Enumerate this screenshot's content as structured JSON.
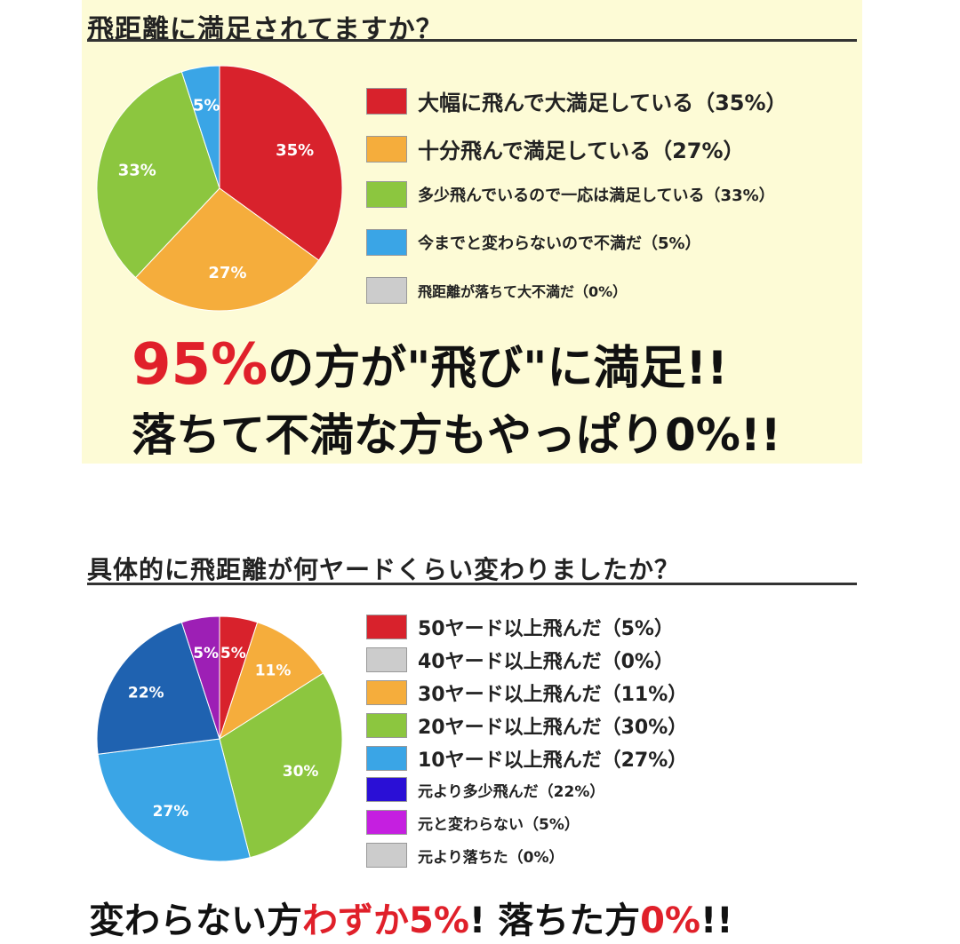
{
  "colors": {
    "red": "#d8222c",
    "orange": "#f5ad3c",
    "green": "#8cc63f",
    "blue": "#3aa5e6",
    "gray": "#cccccc",
    "navy": "#1f62b0",
    "violet": "#9d1fb5",
    "accent": "#e0202a",
    "panel": "#fdfbd6"
  },
  "chart_data": [
    {
      "type": "pie",
      "title": "飛距離に満足されてますか？",
      "slices": [
        {
          "label": "大幅に飛んで大満足している（35%）",
          "value": 35,
          "pie_label": "35%",
          "color": "#d8222c"
        },
        {
          "label": "十分飛んで満足している（27%）",
          "value": 27,
          "pie_label": "27%",
          "color": "#f5ad3c"
        },
        {
          "label": "多少飛んでいるので一応は満足している（33%）",
          "value": 33,
          "pie_label": "33%",
          "color": "#8cc63f"
        },
        {
          "label": "今までと変わらないので不満だ（5%）",
          "value": 5,
          "pie_label": "5%",
          "color": "#3aa5e6"
        },
        {
          "label": "飛距離が落ちて大不満だ（0%）",
          "value": 0,
          "pie_label": "",
          "color": "#cccccc"
        }
      ]
    },
    {
      "type": "pie",
      "title": "具体的に飛距離が何ヤードくらい変わりましたか？",
      "slices": [
        {
          "label": "50ヤード以上飛んだ（5%）",
          "value": 5,
          "pie_label": "5%",
          "color": "#d8222c"
        },
        {
          "label": "40ヤード以上飛んだ（0%）",
          "value": 0,
          "pie_label": "",
          "color": "#cccccc"
        },
        {
          "label": "30ヤード以上飛んだ（11%）",
          "value": 11,
          "pie_label": "11%",
          "color": "#f5ad3c"
        },
        {
          "label": "20ヤード以上飛んだ（30%）",
          "value": 30,
          "pie_label": "30%",
          "color": "#8cc63f"
        },
        {
          "label": "10ヤード以上飛んだ（27%）",
          "value": 27,
          "pie_label": "27%",
          "color": "#3aa5e6"
        },
        {
          "label": "元より多少飛んだ（22%）",
          "value": 22,
          "pie_label": "22%",
          "color": "#1f62b0",
          "legend_color": "#2a0fd6"
        },
        {
          "label": "元と変わらない（5%）",
          "value": 5,
          "pie_label": "5%",
          "color": "#9d1fb5",
          "legend_color": "#c51fe0"
        },
        {
          "label": "元より落ちた（0%）",
          "value": 0,
          "pie_label": "",
          "color": "#cccccc"
        }
      ]
    }
  ],
  "headline1": {
    "big": "95%",
    "rest": "の方が\"飛び\"に満足!!"
  },
  "headline2": "落ちて不満な方もやっぱり0%!!",
  "footer": {
    "p1": "変わらない方",
    "p2": "わずか5%",
    "p3": "! 落ちた方",
    "p4": "0%",
    "p5": "!!"
  }
}
